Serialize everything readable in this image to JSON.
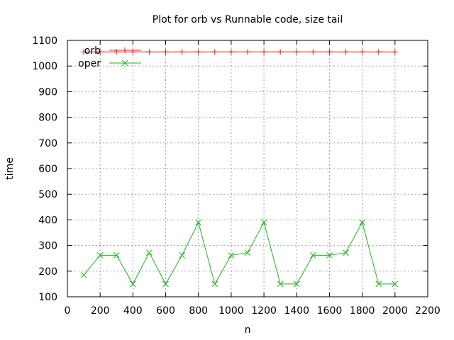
{
  "chart_data": {
    "type": "line",
    "title": "Plot for orb vs Runnable code, size tail",
    "xlabel": "n",
    "ylabel": "time",
    "xlim": [
      0,
      2200
    ],
    "ylim": [
      100,
      1100
    ],
    "xticks": [
      0,
      200,
      400,
      600,
      800,
      1000,
      1200,
      1400,
      1600,
      1800,
      2000,
      2200
    ],
    "yticks": [
      100,
      200,
      300,
      400,
      500,
      600,
      700,
      800,
      900,
      1000,
      1100
    ],
    "grid": true,
    "legend_position": "top-left",
    "x": [
      100,
      200,
      300,
      400,
      500,
      600,
      700,
      800,
      900,
      1000,
      1100,
      1200,
      1300,
      1400,
      1500,
      1600,
      1700,
      1800,
      1900,
      2000
    ],
    "series": [
      {
        "name": "orb",
        "color": "#e41a1c",
        "marker": "plus",
        "values": [
          1055,
          1055,
          1055,
          1055,
          1055,
          1055,
          1055,
          1055,
          1055,
          1055,
          1055,
          1055,
          1055,
          1055,
          1055,
          1055,
          1055,
          1055,
          1055,
          1055
        ]
      },
      {
        "name": "oper",
        "color": "#1fb31f",
        "marker": "cross",
        "values": [
          185,
          262,
          262,
          150,
          272,
          150,
          262,
          390,
          150,
          262,
          272,
          390,
          150,
          150,
          262,
          262,
          272,
          390,
          150,
          150
        ]
      }
    ]
  }
}
